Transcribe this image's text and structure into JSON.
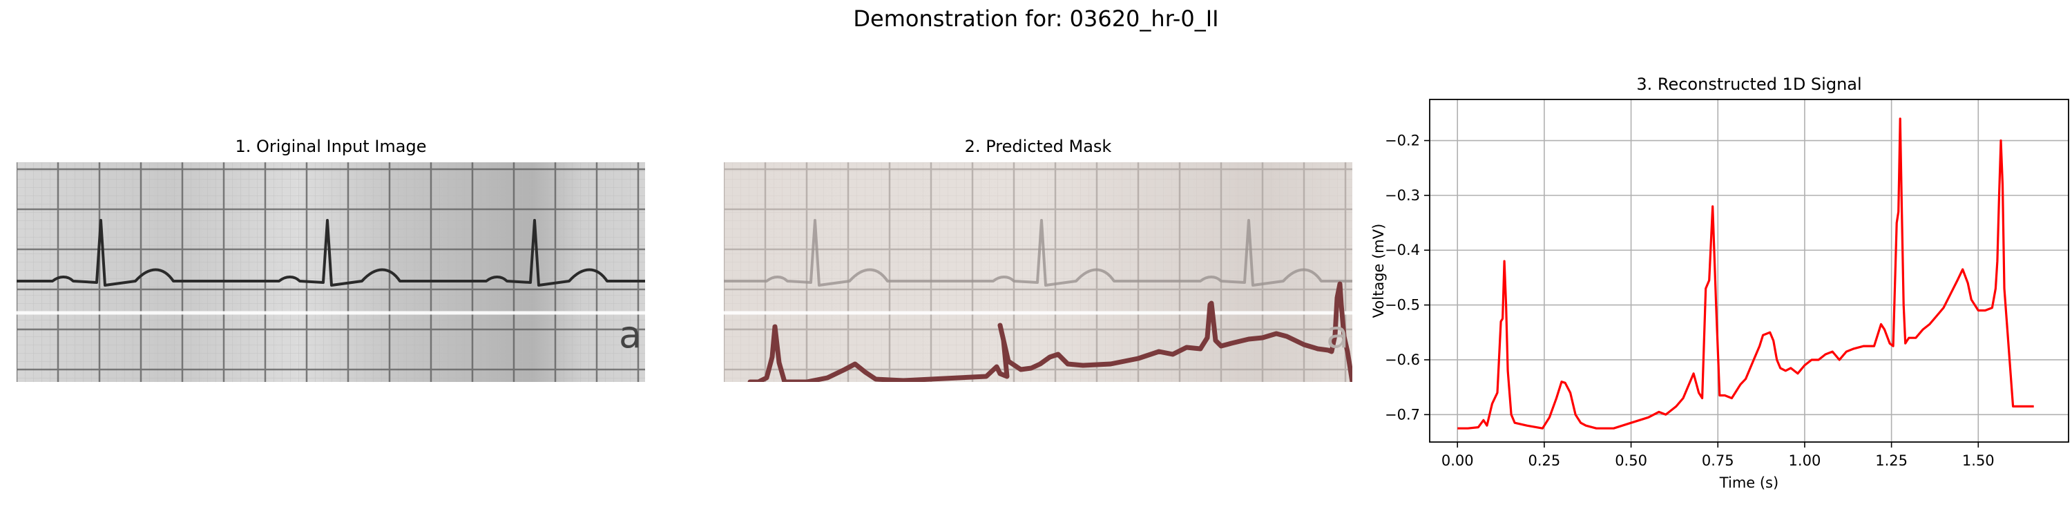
{
  "suptitle": "Demonstration for: 03620_hr-0_II",
  "panels": {
    "original": {
      "title": "1. Original Input Image",
      "overlay_letter": "a"
    },
    "mask": {
      "title": "2. Predicted Mask",
      "overlay_letter": "a"
    }
  },
  "colors": {
    "paper": "#d9d9d9",
    "grid_major": "#5a5a5a",
    "trace": "#2a2a2a",
    "mask_paper": "#e0dad6",
    "mask_trace": "#7a3a3c",
    "signal": "#ff0000"
  },
  "chart_data": {
    "type": "line",
    "title": "3. Reconstructed 1D Signal",
    "xlabel": "Time (s)",
    "ylabel": "Voltage (mV)",
    "xlim": [
      -0.08,
      1.76
    ],
    "ylim": [
      -0.75,
      -0.125
    ],
    "xticks": [
      0.0,
      0.25,
      0.5,
      0.75,
      1.0,
      1.25,
      1.5
    ],
    "xtick_labels": [
      "0.00",
      "0.25",
      "0.50",
      "0.75",
      "1.00",
      "1.25",
      "1.50"
    ],
    "yticks": [
      -0.7,
      -0.6,
      -0.5,
      -0.4,
      -0.3,
      -0.2
    ],
    "ytick_labels": [
      "−0.7",
      "−0.6",
      "−0.5",
      "−0.4",
      "−0.3",
      "−0.2"
    ],
    "grid": true,
    "series": [
      {
        "color": "#ff0000",
        "x": [
          0.0,
          0.03,
          0.06,
          0.075,
          0.085,
          0.1,
          0.115,
          0.125,
          0.13,
          0.135,
          0.14,
          0.145,
          0.155,
          0.165,
          0.2,
          0.245,
          0.265,
          0.285,
          0.3,
          0.31,
          0.325,
          0.34,
          0.355,
          0.37,
          0.4,
          0.45,
          0.5,
          0.55,
          0.58,
          0.6,
          0.63,
          0.65,
          0.67,
          0.68,
          0.695,
          0.705,
          0.715,
          0.725,
          0.735,
          0.745,
          0.755,
          0.77,
          0.79,
          0.8,
          0.815,
          0.83,
          0.85,
          0.87,
          0.88,
          0.9,
          0.91,
          0.92,
          0.93,
          0.945,
          0.96,
          0.98,
          1.0,
          1.02,
          1.04,
          1.06,
          1.08,
          1.1,
          1.12,
          1.14,
          1.17,
          1.2,
          1.22,
          1.23,
          1.245,
          1.255,
          1.265,
          1.27,
          1.275,
          1.28,
          1.285,
          1.29,
          1.295,
          1.3,
          1.32,
          1.34,
          1.36,
          1.38,
          1.4,
          1.42,
          1.44,
          1.455,
          1.47,
          1.48,
          1.5,
          1.52,
          1.54,
          1.55,
          1.555,
          1.56,
          1.565,
          1.57,
          1.575,
          1.585,
          1.6,
          1.615,
          1.66
        ],
        "y": [
          -0.725,
          -0.725,
          -0.723,
          -0.71,
          -0.72,
          -0.68,
          -0.66,
          -0.53,
          -0.525,
          -0.42,
          -0.5,
          -0.62,
          -0.7,
          -0.715,
          -0.72,
          -0.725,
          -0.705,
          -0.67,
          -0.64,
          -0.642,
          -0.66,
          -0.7,
          -0.715,
          -0.72,
          -0.725,
          -0.725,
          -0.715,
          -0.705,
          -0.695,
          -0.7,
          -0.685,
          -0.67,
          -0.64,
          -0.625,
          -0.66,
          -0.67,
          -0.47,
          -0.455,
          -0.32,
          -0.5,
          -0.665,
          -0.665,
          -0.67,
          -0.66,
          -0.645,
          -0.635,
          -0.605,
          -0.575,
          -0.555,
          -0.55,
          -0.565,
          -0.6,
          -0.615,
          -0.62,
          -0.615,
          -0.625,
          -0.61,
          -0.6,
          -0.6,
          -0.59,
          -0.585,
          -0.6,
          -0.585,
          -0.58,
          -0.575,
          -0.575,
          -0.535,
          -0.545,
          -0.57,
          -0.575,
          -0.35,
          -0.33,
          -0.16,
          -0.335,
          -0.5,
          -0.57,
          -0.565,
          -0.56,
          -0.56,
          -0.545,
          -0.535,
          -0.52,
          -0.505,
          -0.48,
          -0.455,
          -0.435,
          -0.46,
          -0.49,
          -0.51,
          -0.51,
          -0.505,
          -0.47,
          -0.42,
          -0.3,
          -0.2,
          -0.28,
          -0.47,
          -0.555,
          -0.685,
          -0.685,
          -0.685
        ]
      }
    ]
  }
}
